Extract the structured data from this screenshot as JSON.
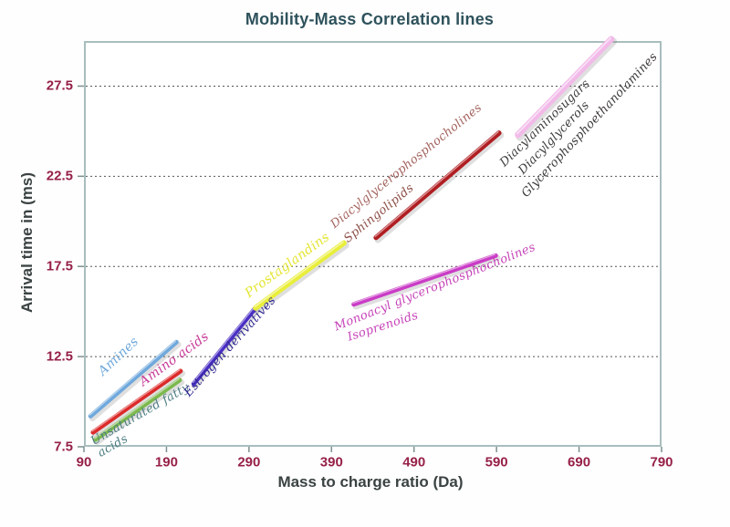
{
  "title": "Mobility-Mass Correlation lines",
  "colors": {
    "title": "#2e525c",
    "axis_labels": "#3b4242",
    "tick_labels": "#962047",
    "plot_border": "#a9bdbd",
    "gridline": "#555555",
    "tick_mark": "#7d9090",
    "background": "#ffffff"
  },
  "chart_data": {
    "type": "line",
    "title": "Mobility-Mass Correlation lines",
    "xlabel": "Mass to charge ratio (Da)",
    "ylabel": "Arrival time in (ms)",
    "xlim": [
      90,
      790
    ],
    "ylim": [
      7.5,
      30
    ],
    "xticks": [
      90,
      190,
      290,
      390,
      490,
      590,
      690,
      790
    ],
    "yticks": [
      7.5,
      12.5,
      17.5,
      22.5,
      27.5
    ],
    "grid": "horizontal dashed gridlines at y ticks",
    "legend": "none - classes labeled as rotated text along each line",
    "series": [
      {
        "name": "Amines",
        "color": "#6fa8dc",
        "width": 5,
        "x": [
          98,
          202
        ],
        "y": [
          9.2,
          13.3
        ]
      },
      {
        "name": "Amino acids",
        "color": "#dc2a2a",
        "width": 5,
        "x": [
          101,
          207
        ],
        "y": [
          8.3,
          11.7
        ]
      },
      {
        "name": "Unsaturated fatty acids",
        "color": "#7cb84e",
        "width": 5,
        "x": [
          104,
          206
        ],
        "y": [
          7.9,
          11.2
        ]
      },
      {
        "name": "Estrogen derivatives",
        "color": "#4a2ec4",
        "width": 5,
        "x": [
          223,
          298
        ],
        "y": [
          11.0,
          15.2
        ]
      },
      {
        "name": "Prostaglandins",
        "color": "#e9ee3a",
        "width": 6,
        "x": [
          298,
          405
        ],
        "y": [
          15.2,
          18.8
        ]
      },
      {
        "name": "Diacylglycerophosphocholines / Sphingolipids",
        "color": "#b01e22",
        "width": 5.5,
        "x": [
          444,
          593
        ],
        "y": [
          19.1,
          24.9
        ]
      },
      {
        "name": "Monoacyl glycerophosphocholines / Isoprenoids",
        "color": "#ca3cc6",
        "width": 5,
        "x": [
          417,
          589
        ],
        "y": [
          15.4,
          18.1
        ]
      },
      {
        "name": "Diacylaminosugars / Diacylglycerols / Glycerophosphoethanolamines",
        "color": "#f2bae9",
        "width": 7,
        "x": [
          616,
          729
        ],
        "y": [
          24.8,
          30.1
        ]
      }
    ],
    "annotations": [
      {
        "text": "Amines",
        "color": "#6fa8dc",
        "x": 132,
        "y": 12.5,
        "rot": -43,
        "size": 14
      },
      {
        "text": "Amino acids",
        "color": "#c73a97",
        "x": 200,
        "y": 12.35,
        "rot": -36,
        "size": 14
      },
      {
        "text": "Unsaturated fatty\nacids",
        "color": "#4d7d82",
        "x": 163,
        "y": 8.9,
        "rot": -30,
        "size": 13
      },
      {
        "text": "Estrogen derivatives",
        "color": "#2f2791",
        "x": 268,
        "y": 13.0,
        "rot": -48,
        "size": 13
      },
      {
        "text": "Prostaglandins",
        "color": "#e4e532",
        "x": 337,
        "y": 17.55,
        "rot": -36,
        "size": 14
      },
      {
        "text": "Diacylglycerophosphocholines",
        "color": "#a3635e",
        "x": 481,
        "y": 23.0,
        "rot": -39,
        "size": 13
      },
      {
        "text": "Sphingolipids",
        "color": "#8d4f47",
        "x": 448,
        "y": 20.4,
        "rot": -39,
        "size": 13
      },
      {
        "text": "Diacylaminosugars",
        "color": "#3d3a3a",
        "x": 650,
        "y": 25.4,
        "rot": -44,
        "size": 13
      },
      {
        "text": "Diacylglycerols",
        "color": "#3d3a3a",
        "x": 661,
        "y": 24.6,
        "rot": -46,
        "size": 13
      },
      {
        "text": "Glycerophosphoethanolamines",
        "color": "#3d3a3a",
        "x": 704,
        "y": 25.3,
        "rot": -47,
        "size": 13
      },
      {
        "text": "Monoacyl glycerophosphocholines",
        "color": "#c642b8",
        "x": 516,
        "y": 16.3,
        "rot": -22,
        "size": 13
      },
      {
        "text": "Isoprenoids",
        "color": "#c642b8",
        "x": 453,
        "y": 14.1,
        "rot": -18,
        "size": 13
      }
    ]
  }
}
